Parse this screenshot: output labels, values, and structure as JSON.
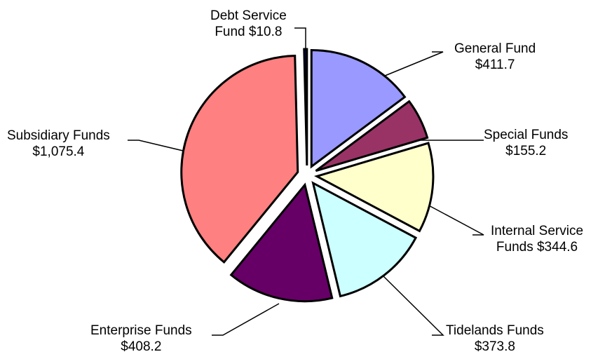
{
  "chart_data": {
    "type": "pie",
    "exploded": true,
    "slices": [
      {
        "name": "General Fund",
        "value": 411.7,
        "value_label": "$411.7",
        "color": "#9999ff"
      },
      {
        "name": "Special Funds",
        "value": 155.2,
        "value_label": "$155.2",
        "color": "#993366"
      },
      {
        "name": "Internal Service Funds",
        "value": 344.6,
        "value_label": "$344.6",
        "color": "#ffffcc"
      },
      {
        "name": "Tidelands Funds",
        "value": 373.8,
        "value_label": "$373.8",
        "color": "#ccffff"
      },
      {
        "name": "Enterprise Funds",
        "value": 408.2,
        "value_label": "$408.2",
        "color": "#660066"
      },
      {
        "name": "Subsidiary Funds",
        "value": 1075.4,
        "value_label": "$1,075.4",
        "color": "#ff8080"
      },
      {
        "name": "Debt Service Fund",
        "value": 10.8,
        "value_label": "$10.8",
        "color": "#000080"
      }
    ]
  },
  "labels": {
    "general": {
      "line1": "General Fund",
      "line2": "$411.7"
    },
    "special": {
      "line1": "Special Funds",
      "line2": "$155.2"
    },
    "internal": {
      "line1": "Internal Service",
      "line2": "Funds  $344.6"
    },
    "tidelands": {
      "line1": "Tidelands Funds",
      "line2": "$373.8"
    },
    "enterprise": {
      "line1": "Enterprise Funds",
      "line2": "$408.2"
    },
    "subsidiary": {
      "line1": "Subsidiary Funds",
      "line2": "$1,075.4"
    },
    "debt": {
      "line1": "Debt Service",
      "line2": "Fund  $10.8"
    }
  }
}
